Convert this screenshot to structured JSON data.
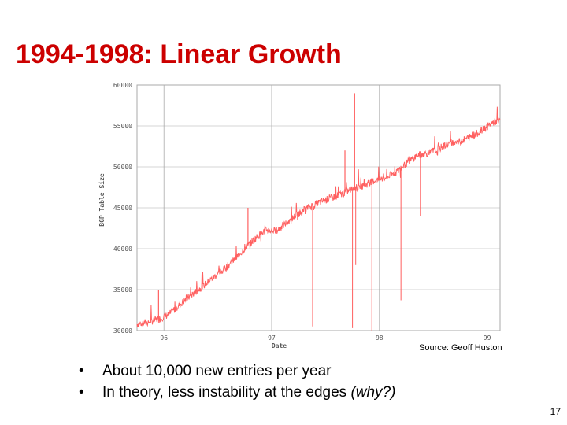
{
  "slide": {
    "title": "1994-1998: Linear Growth",
    "source": "Source: Geoff Huston",
    "bullets": [
      {
        "text": "About 10,000 new entries per year",
        "emphasis": ""
      },
      {
        "text": "In theory, less instability at the edges",
        "emphasis": "(why?)"
      }
    ],
    "bullet_glyph": "•",
    "page_number": "17"
  },
  "colors": {
    "title": "#cc0000",
    "series": "#ff6060",
    "grid": "#aaaaaa",
    "plot_border": "#aaaaaa"
  },
  "chart_data": {
    "type": "line",
    "title": "",
    "xlabel": "Date",
    "ylabel": "BGP Table Size",
    "xlim": [
      1995.75,
      1999.12
    ],
    "ylim": [
      30000,
      60000
    ],
    "x_ticks": [
      {
        "value": 1996,
        "label": "96"
      },
      {
        "value": 1997,
        "label": "97"
      },
      {
        "value": 1998,
        "label": "98"
      },
      {
        "value": 1999,
        "label": "99"
      }
    ],
    "y_ticks": [
      {
        "value": 60000,
        "label": "60000"
      },
      {
        "value": 55000,
        "label": "55000"
      },
      {
        "value": 50000,
        "label": "50000"
      },
      {
        "value": 45000,
        "label": "45000"
      },
      {
        "value": 40000,
        "label": "40000"
      },
      {
        "value": 35000,
        "label": "35000"
      },
      {
        "value": 30000,
        "label": "30000"
      }
    ],
    "grid": true,
    "series": [
      {
        "name": "BGP Table Size",
        "x": [
          1995.75,
          1995.85,
          1995.95,
          1996.05,
          1996.15,
          1996.25,
          1996.35,
          1996.45,
          1996.55,
          1996.65,
          1996.75,
          1996.85,
          1996.95,
          1997.05,
          1997.15,
          1997.25,
          1997.35,
          1997.45,
          1997.55,
          1997.65,
          1997.75,
          1997.85,
          1997.95,
          1998.05,
          1998.15,
          1998.25,
          1998.35,
          1998.45,
          1998.55,
          1998.65,
          1998.75,
          1998.85,
          1998.95,
          1999.05,
          1999.12
        ],
        "values": [
          30800,
          31000,
          31400,
          32000,
          33200,
          34300,
          35300,
          36400,
          37400,
          38600,
          40000,
          41300,
          42300,
          42200,
          43300,
          44300,
          45100,
          45700,
          46200,
          46700,
          47300,
          47700,
          48300,
          48600,
          49300,
          50400,
          51400,
          51700,
          52200,
          52900,
          53100,
          53700,
          54400,
          55400,
          55700
        ]
      }
    ],
    "drops": [
      {
        "x": 1997.38,
        "to": 30500
      },
      {
        "x": 1997.75,
        "to": 30300
      },
      {
        "x": 1997.78,
        "to": 38000
      },
      {
        "x": 1997.93,
        "to": 30000
      },
      {
        "x": 1998.2,
        "to": 33700
      },
      {
        "x": 1998.38,
        "to": 44000
      }
    ],
    "spikes": [
      {
        "x": 1997.77,
        "to": 59000
      },
      {
        "x": 1997.68,
        "to": 52000
      },
      {
        "x": 1996.78,
        "to": 45000
      },
      {
        "x": 1995.95,
        "to": 35000
      }
    ]
  }
}
